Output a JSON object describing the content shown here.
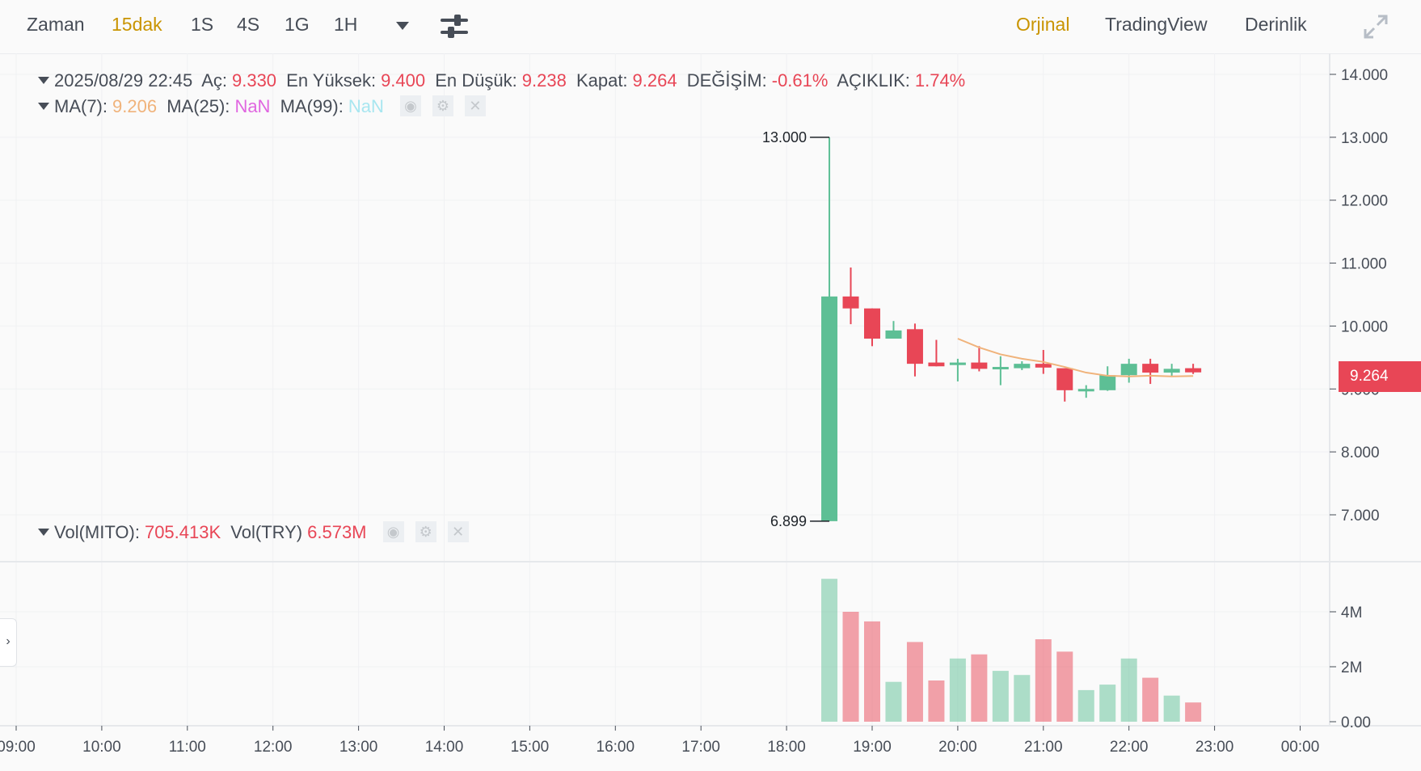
{
  "toolbar": {
    "time_label": "Zaman",
    "intervals": [
      "15dak",
      "1S",
      "4S",
      "1G",
      "1H"
    ],
    "active_interval": "15dak",
    "views": [
      "Orjinal",
      "TradingView",
      "Derinlik"
    ],
    "active_view": "Orjinal"
  },
  "ohlc": {
    "date": "2025/08/29 22:45",
    "open_label": "Aç:",
    "open": "9.330",
    "high_label": "En Yüksek:",
    "high": "9.400",
    "low_label": "En Düşük:",
    "low": "9.238",
    "close_label": "Kapat:",
    "close": "9.264",
    "change_label": "DEĞİŞİM:",
    "change": "-0.61%",
    "amplitude_label": "AÇIKLIK:",
    "amplitude": "1.74%"
  },
  "ma": {
    "ma7_label": "MA(7):",
    "ma7": "9.206",
    "ma25_label": "MA(25):",
    "ma25": "NaN",
    "ma99_label": "MA(99):",
    "ma99": "NaN"
  },
  "volume": {
    "base_label": "Vol(MITO):",
    "base": "705.413K",
    "quote_label": "Vol(TRY)",
    "quote": "6.573M"
  },
  "current_price": "9.264",
  "colors": {
    "up": "#5dbf95",
    "down": "#e84656",
    "ma7": "#f0b37b",
    "accent": "#c99400"
  },
  "chart_data": {
    "type": "candlestick",
    "interval": "15m",
    "price_axis": {
      "ticks": [
        "14.000",
        "13.000",
        "12.000",
        "11.000",
        "10.000",
        "9.000",
        "8.000",
        "7.000"
      ],
      "range": [
        6.3,
        14.3
      ]
    },
    "volume_axis": {
      "ticks": [
        "4M",
        "2M",
        "0.00"
      ],
      "range": [
        0,
        5.3
      ]
    },
    "time_axis": [
      "09:00",
      "10:00",
      "11:00",
      "12:00",
      "13:00",
      "14:00",
      "15:00",
      "16:00",
      "17:00",
      "18:00",
      "19:00",
      "20:00",
      "21:00",
      "22:00",
      "23:00",
      "00:00"
    ],
    "max_marker": "13.000",
    "min_marker": "6.899",
    "candles": [
      {
        "t": "18:30",
        "o": 6.899,
        "h": 13.0,
        "l": 6.899,
        "c": 10.47,
        "v": 5.2
      },
      {
        "t": "18:45",
        "o": 10.47,
        "h": 10.93,
        "l": 10.03,
        "c": 10.28,
        "v": 4.0
      },
      {
        "t": "19:00",
        "o": 10.28,
        "h": 10.28,
        "l": 9.68,
        "c": 9.8,
        "v": 3.65
      },
      {
        "t": "19:15",
        "o": 9.8,
        "h": 10.08,
        "l": 9.8,
        "c": 9.93,
        "v": 1.45
      },
      {
        "t": "19:30",
        "o": 9.95,
        "h": 10.04,
        "l": 9.2,
        "c": 9.4,
        "v": 2.9
      },
      {
        "t": "19:45",
        "o": 9.42,
        "h": 9.78,
        "l": 9.36,
        "c": 9.36,
        "v": 1.5
      },
      {
        "t": "20:00",
        "o": 9.38,
        "h": 9.48,
        "l": 9.12,
        "c": 9.42,
        "v": 2.3
      },
      {
        "t": "20:15",
        "o": 9.42,
        "h": 9.68,
        "l": 9.28,
        "c": 9.32,
        "v": 2.45
      },
      {
        "t": "20:30",
        "o": 9.32,
        "h": 9.52,
        "l": 9.06,
        "c": 9.35,
        "v": 1.85
      },
      {
        "t": "20:45",
        "o": 9.33,
        "h": 9.44,
        "l": 9.3,
        "c": 9.4,
        "v": 1.7
      },
      {
        "t": "21:00",
        "o": 9.4,
        "h": 9.62,
        "l": 9.24,
        "c": 9.34,
        "v": 3.0
      },
      {
        "t": "21:15",
        "o": 9.33,
        "h": 9.33,
        "l": 8.8,
        "c": 8.98,
        "v": 2.55
      },
      {
        "t": "21:30",
        "o": 8.97,
        "h": 9.06,
        "l": 8.86,
        "c": 9.0,
        "v": 1.15
      },
      {
        "t": "21:45",
        "o": 8.98,
        "h": 9.36,
        "l": 8.97,
        "c": 9.22,
        "v": 1.35
      },
      {
        "t": "22:00",
        "o": 9.22,
        "h": 9.48,
        "l": 9.1,
        "c": 9.4,
        "v": 2.3
      },
      {
        "t": "22:15",
        "o": 9.4,
        "h": 9.48,
        "l": 9.08,
        "c": 9.26,
        "v": 1.6
      },
      {
        "t": "22:30",
        "o": 9.26,
        "h": 9.4,
        "l": 9.2,
        "c": 9.32,
        "v": 0.95
      },
      {
        "t": "22:45",
        "o": 9.33,
        "h": 9.4,
        "l": 9.238,
        "c": 9.264,
        "v": 0.7
      }
    ],
    "ma7_line": [
      {
        "t": "20:00",
        "v": 9.8
      },
      {
        "t": "20:15",
        "v": 9.66
      },
      {
        "t": "20:30",
        "v": 9.55
      },
      {
        "t": "20:45",
        "v": 9.48
      },
      {
        "t": "21:00",
        "v": 9.43
      },
      {
        "t": "21:15",
        "v": 9.35
      },
      {
        "t": "21:30",
        "v": 9.26
      },
      {
        "t": "21:45",
        "v": 9.21
      },
      {
        "t": "22:00",
        "v": 9.2
      },
      {
        "t": "22:15",
        "v": 9.21
      },
      {
        "t": "22:30",
        "v": 9.2
      },
      {
        "t": "22:45",
        "v": 9.206
      }
    ]
  }
}
